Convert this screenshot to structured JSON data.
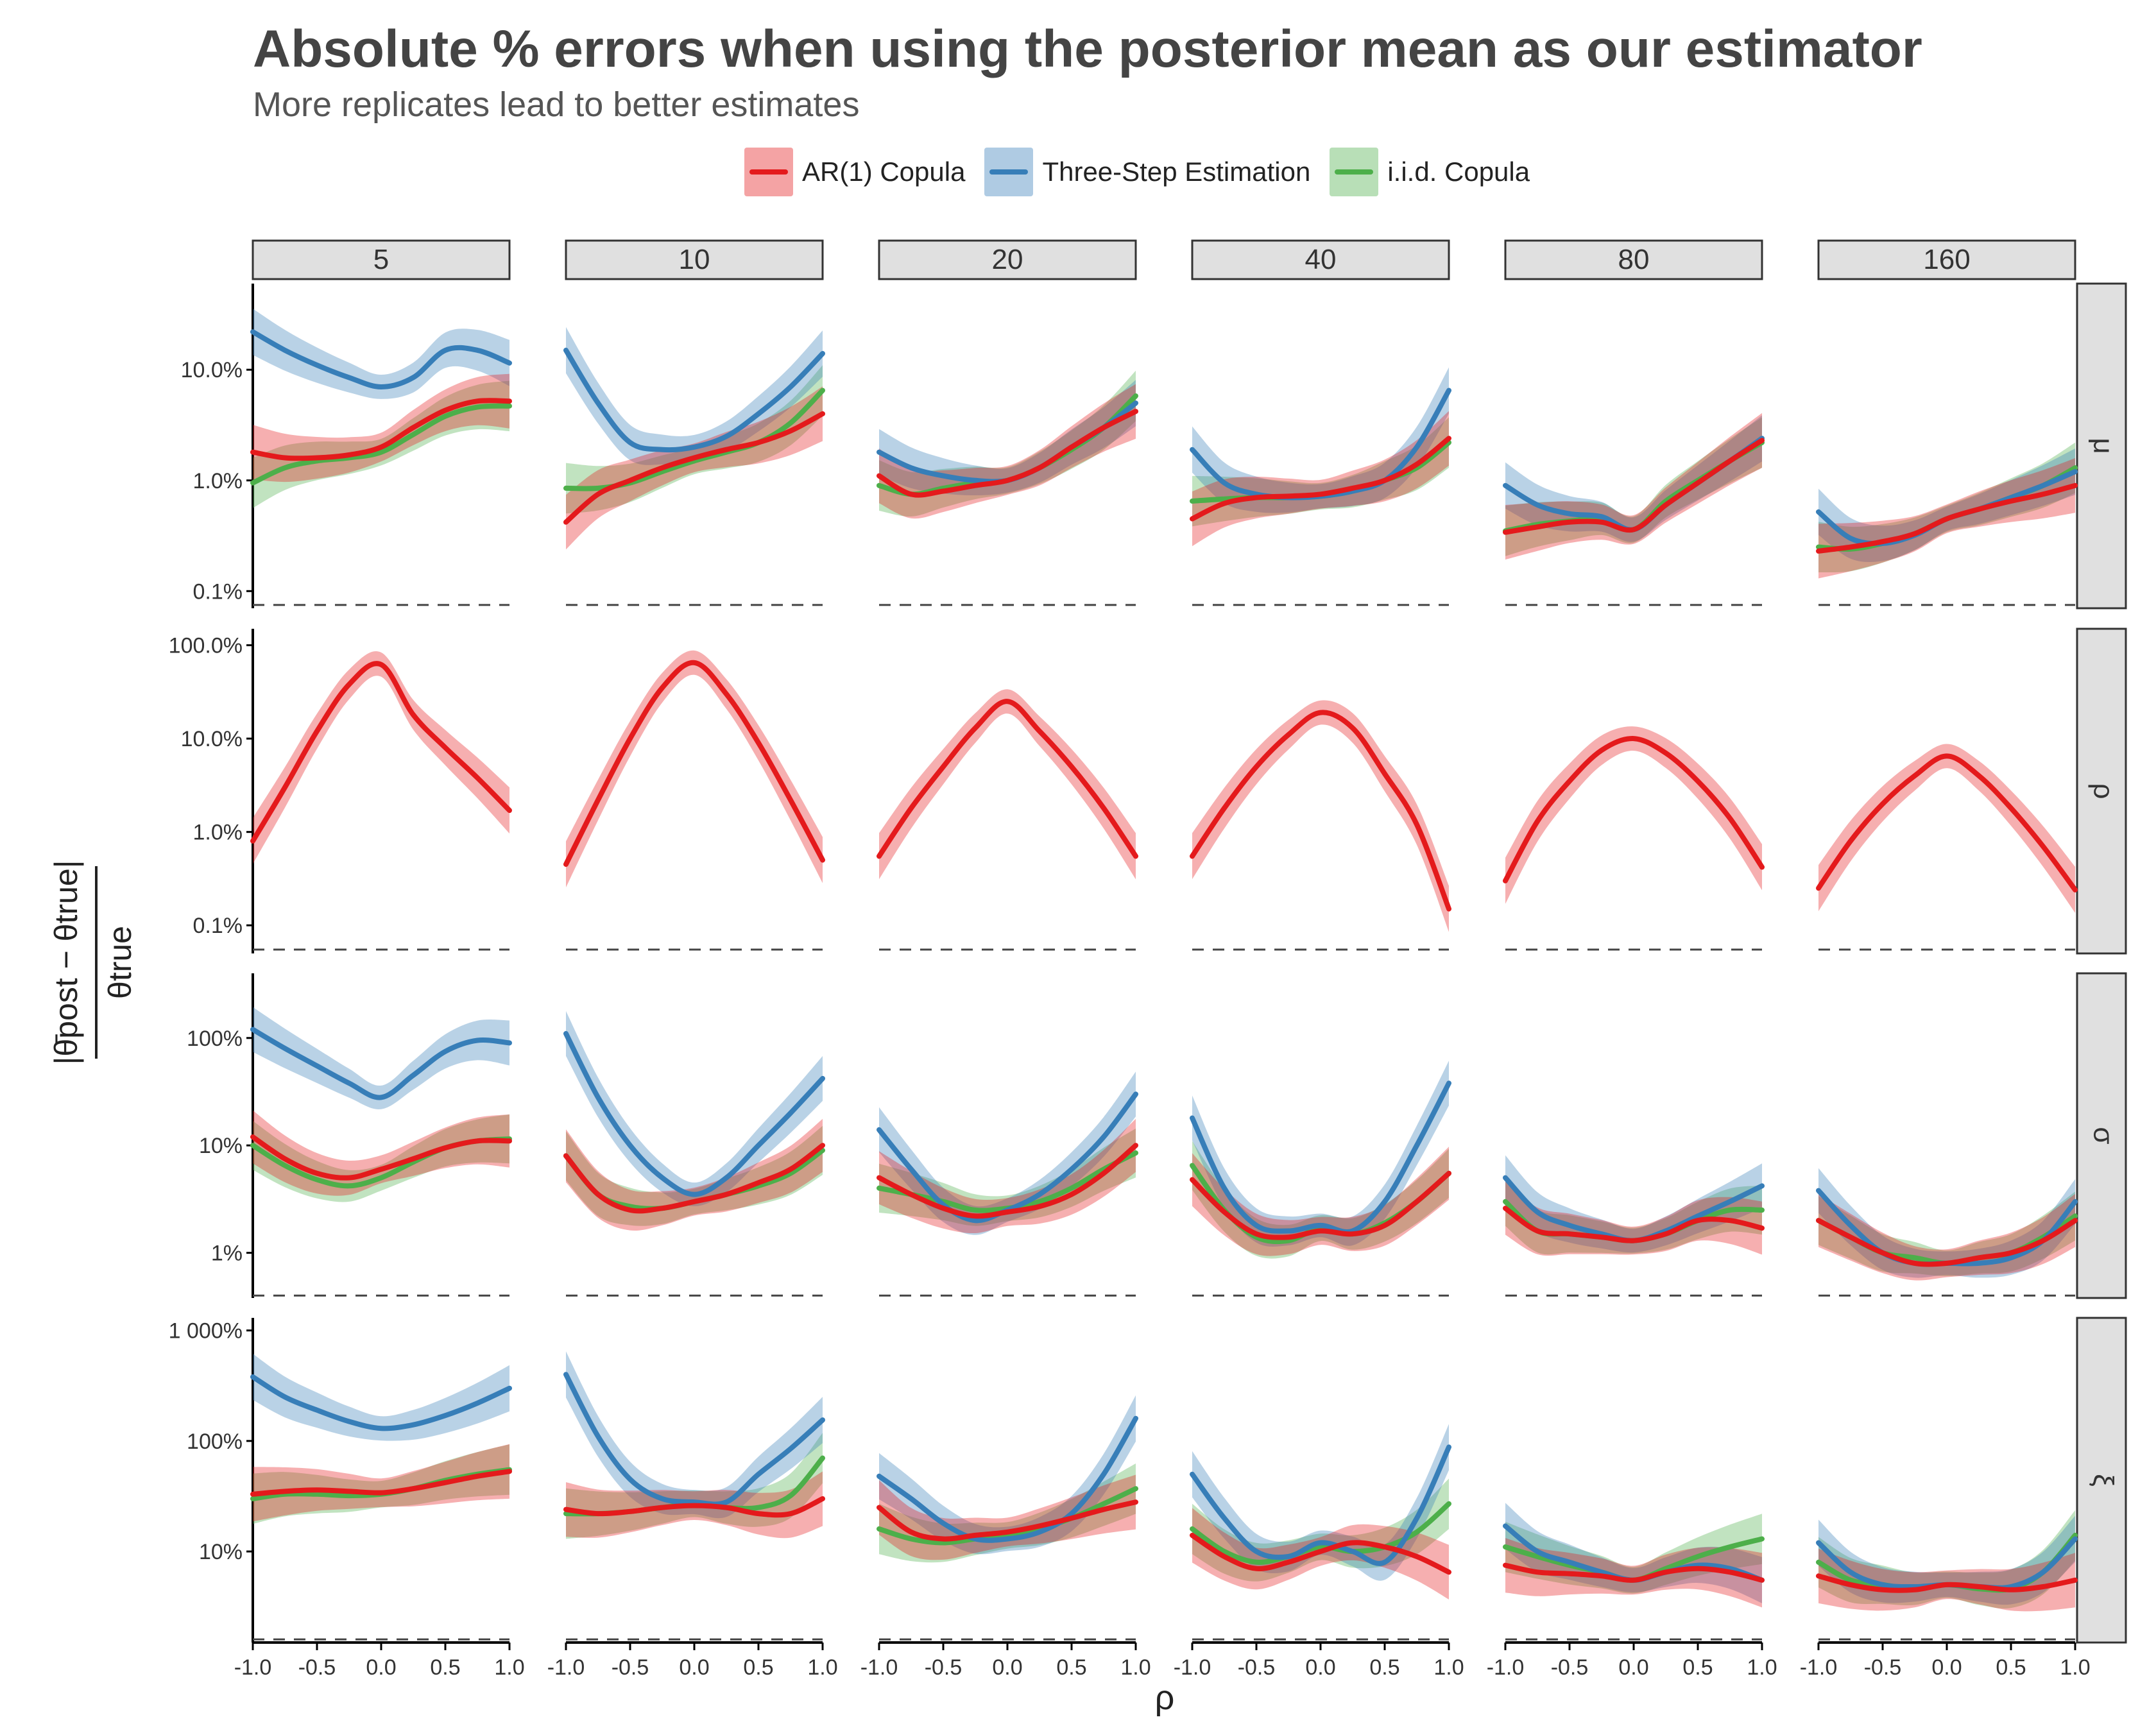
{
  "title": "Absolute % errors when using the posterior mean as our estimator",
  "subtitle": "More replicates lead to better estimates",
  "legend": [
    {
      "label": "AR(1) Copula",
      "color": "#e41a1c"
    },
    {
      "label": "Three-Step Estimation",
      "color": "#377eb8"
    },
    {
      "label": "i.i.d. Copula",
      "color": "#4daf4a"
    }
  ],
  "colors": {
    "strip_fill": "#e0e0e0",
    "strip_border": "#333333",
    "axis": "#000000",
    "reference_line": "#444444"
  },
  "chart_data": {
    "type": "line",
    "title": "Absolute % errors when using the posterior mean as our estimator",
    "subtitle": "More replicates lead to better estimates",
    "xlabel": "ρ",
    "ylabel_numerator": "|θ̄post − θtrue|",
    "ylabel_denominator": "θtrue",
    "y_scale": "log10",
    "x_range": [
      -1,
      1
    ],
    "x_ticks": [
      -1,
      -0.5,
      0,
      0.5,
      1
    ],
    "x_tick_labels": [
      "-1.0",
      "-0.5",
      "0.0",
      "0.5",
      "1.0"
    ],
    "x_points": [
      -1,
      -0.75,
      -0.5,
      -0.25,
      0,
      0.25,
      0.5,
      0.75,
      1
    ],
    "columns": [
      "5",
      "10",
      "20",
      "40",
      "80",
      "160"
    ],
    "rows": [
      {
        "label": "μ",
        "ylim": [
          0.07,
          60
        ],
        "ticks": [
          0.1,
          1,
          10
        ],
        "tick_labels": [
          "0.1%",
          "1.0%",
          "10.0%"
        ],
        "reference_value": 0.075,
        "panels": [
          {
            "ar1": [
              1.8,
              1.6,
              1.6,
              1.7,
              2.0,
              3.0,
              4.3,
              5.2,
              5.2
            ],
            "three": [
              22,
              15,
              11,
              8.5,
              7.0,
              8.5,
              15,
              15,
              11.5
            ],
            "iid": [
              0.95,
              1.3,
              1.5,
              1.6,
              1.8,
              2.6,
              3.8,
              4.6,
              4.7
            ]
          },
          {
            "ar1": [
              0.42,
              0.75,
              1.0,
              1.3,
              1.6,
              1.9,
              2.2,
              2.8,
              4.0
            ],
            "three": [
              15,
              5.0,
              2.2,
              1.9,
              2.0,
              2.5,
              4.0,
              7.0,
              14
            ],
            "iid": [
              0.85,
              0.85,
              0.95,
              1.2,
              1.5,
              1.8,
              2.2,
              3.3,
              6.5
            ]
          },
          {
            "ar1": [
              1.1,
              0.75,
              0.8,
              0.9,
              1.0,
              1.3,
              2.0,
              3.0,
              4.2
            ],
            "three": [
              1.8,
              1.3,
              1.1,
              1.0,
              1.0,
              1.3,
              2.0,
              3.0,
              5.0
            ],
            "iid": [
              0.9,
              0.75,
              0.85,
              0.95,
              1.0,
              1.3,
              1.9,
              3.0,
              5.8
            ]
          },
          {
            "ar1": [
              0.45,
              0.62,
              0.7,
              0.72,
              0.75,
              0.85,
              1.0,
              1.4,
              2.4
            ],
            "three": [
              1.9,
              0.95,
              0.75,
              0.7,
              0.72,
              0.8,
              1.0,
              2.0,
              6.5
            ],
            "iid": [
              0.65,
              0.68,
              0.7,
              0.7,
              0.72,
              0.8,
              1.0,
              1.3,
              2.2
            ]
          },
          {
            "ar1": [
              0.34,
              0.38,
              0.42,
              0.42,
              0.36,
              0.6,
              0.95,
              1.5,
              2.3
            ],
            "three": [
              0.9,
              0.6,
              0.5,
              0.47,
              0.36,
              0.6,
              0.95,
              1.5,
              2.4
            ],
            "iid": [
              0.35,
              0.4,
              0.43,
              0.45,
              0.36,
              0.65,
              1.0,
              1.5,
              2.2
            ]
          },
          {
            "ar1": [
              0.23,
              0.25,
              0.28,
              0.33,
              0.45,
              0.55,
              0.65,
              0.75,
              0.9
            ],
            "three": [
              0.52,
              0.3,
              0.27,
              0.32,
              0.45,
              0.55,
              0.7,
              0.9,
              1.2
            ],
            "iid": [
              0.25,
              0.24,
              0.27,
              0.33,
              0.45,
              0.55,
              0.7,
              0.9,
              1.3
            ]
          }
        ]
      },
      {
        "label": "ρ",
        "ylim": [
          0.05,
          150
        ],
        "ticks": [
          0.1,
          1,
          10,
          100
        ],
        "tick_labels": [
          "0.1%",
          "1.0%",
          "10.0%",
          "100.0%"
        ],
        "reference_value": 0.055,
        "panels": [
          {
            "ar1": [
              0.8,
              3.0,
              12,
              38,
              62,
              18,
              8,
              3.8,
              1.7
            ]
          },
          {
            "ar1": [
              0.45,
              2.2,
              10,
              35,
              65,
              30,
              9,
              2.2,
              0.5
            ]
          },
          {
            "ar1": [
              0.55,
              1.8,
              5.0,
              13,
              25,
              12,
              5.0,
              1.8,
              0.55
            ]
          },
          {
            "ar1": [
              0.55,
              1.8,
              5.0,
              11,
              19,
              13,
              4.2,
              1.2,
              0.15
            ]
          },
          {
            "ar1": [
              0.3,
              1.3,
              3.5,
              7.5,
              10,
              7.0,
              3.5,
              1.4,
              0.42
            ]
          },
          {
            "ar1": [
              0.25,
              0.8,
              2.0,
              4.0,
              6.5,
              4.0,
              1.8,
              0.7,
              0.24
            ]
          }
        ]
      },
      {
        "label": "σ",
        "ylim": [
          0.38,
          400
        ],
        "ticks": [
          1,
          10,
          100
        ],
        "tick_labels": [
          "1%",
          "10%",
          "100%"
        ],
        "reference_value": 0.4,
        "panels": [
          {
            "ar1": [
              12,
              7.5,
              5.5,
              5.0,
              6.0,
              7.5,
              9.5,
              11,
              11
            ],
            "three": [
              120,
              80,
              55,
              38,
              28,
              45,
              75,
              95,
              90
            ],
            "iid": [
              10,
              6.5,
              4.8,
              4.2,
              5.0,
              7.0,
              9.5,
              11,
              11.5
            ]
          },
          {
            "ar1": [
              8,
              3.5,
              2.5,
              2.6,
              3.0,
              3.5,
              4.5,
              6.0,
              10
            ],
            "three": [
              110,
              28,
              10,
              5.0,
              3.5,
              5.0,
              10,
              20,
              42
            ],
            "iid": [
              8,
              3.5,
              2.7,
              2.6,
              3.0,
              3.5,
              4.2,
              5.5,
              9
            ]
          },
          {
            "ar1": [
              5,
              3.5,
              2.6,
              2.2,
              2.4,
              2.7,
              3.5,
              5.5,
              10
            ],
            "three": [
              14,
              6.0,
              2.8,
              2.0,
              2.5,
              3.5,
              6.0,
              12,
              30
            ],
            "iid": [
              4,
              3.5,
              3.0,
              2.5,
              2.6,
              3.0,
              4.0,
              6.0,
              8.5
            ]
          },
          {
            "ar1": [
              4.8,
              2.4,
              1.5,
              1.4,
              1.6,
              1.5,
              1.8,
              3.0,
              5.5
            ],
            "three": [
              18,
              4.0,
              1.8,
              1.6,
              1.8,
              1.6,
              3.0,
              10,
              38
            ],
            "iid": [
              6.5,
              2.5,
              1.4,
              1.3,
              1.7,
              1.5,
              1.9,
              3.0,
              5.5
            ]
          },
          {
            "ar1": [
              2.6,
              1.6,
              1.5,
              1.4,
              1.3,
              1.5,
              2.0,
              2.0,
              1.7
            ],
            "three": [
              5.0,
              2.4,
              1.8,
              1.5,
              1.3,
              1.6,
              2.2,
              3.0,
              4.2
            ],
            "iid": [
              3.0,
              1.6,
              1.5,
              1.4,
              1.3,
              1.5,
              2.0,
              2.5,
              2.5
            ]
          },
          {
            "ar1": [
              2.0,
              1.4,
              1.0,
              0.8,
              0.8,
              0.9,
              1.0,
              1.3,
              2.0
            ],
            "three": [
              3.8,
              1.8,
              1.0,
              0.8,
              0.8,
              0.8,
              0.9,
              1.3,
              3.0
            ],
            "iid": [
              2.0,
              1.4,
              1.0,
              0.9,
              0.8,
              0.9,
              1.0,
              1.4,
              2.2
            ]
          }
        ]
      },
      {
        "label": "ξ",
        "ylim": [
          1.5,
          1300
        ],
        "ticks": [
          10,
          100,
          1000
        ],
        "tick_labels": [
          "10%",
          "100%",
          "1 000%"
        ],
        "reference_value": 1.6,
        "panels": [
          {
            "ar1": [
              33,
              35,
              36,
              35,
              34,
              37,
              42,
              48,
              53
            ],
            "three": [
              380,
              250,
              190,
              150,
              130,
              140,
              170,
              220,
              300
            ],
            "iid": [
              30,
              33,
              33,
              32,
              33,
              37,
              44,
              50,
              55
            ]
          },
          {
            "ar1": [
              24,
              22,
              23,
              25,
              26,
              25,
              22,
              22,
              30
            ],
            "three": [
              400,
              110,
              45,
              30,
              28,
              28,
              50,
              85,
              155
            ],
            "iid": [
              22,
              22,
              23,
              25,
              27,
              25,
              25,
              32,
              70
            ]
          },
          {
            "ar1": [
              25,
              15,
              13,
              14,
              15,
              17,
              20,
              24,
              28
            ],
            "three": [
              48,
              30,
              18,
              13,
              13,
              15,
              22,
              50,
              160
            ],
            "iid": [
              16,
              13,
              12,
              13,
              14,
              16,
              20,
              27,
              37
            ]
          },
          {
            "ar1": [
              14,
              9,
              7,
              8,
              10,
              12,
              11,
              9,
              6.5
            ],
            "three": [
              50,
              20,
              10,
              9,
              12,
              10,
              8,
              20,
              88
            ],
            "iid": [
              16,
              10,
              8,
              9,
              11,
              10,
              11,
              15,
              27
            ]
          },
          {
            "ar1": [
              7.5,
              6.5,
              6.3,
              6.0,
              5.5,
              6.5,
              7.0,
              6.5,
              5.5
            ],
            "three": [
              17,
              10,
              8,
              6.5,
              5.5,
              6.5,
              7.5,
              7,
              5.5
            ],
            "iid": [
              11,
              9,
              7.5,
              6.5,
              5.5,
              7,
              9,
              11,
              13
            ]
          },
          {
            "ar1": [
              6,
              5,
              4.5,
              4.5,
              5,
              4.8,
              4.5,
              4.8,
              5.5
            ],
            "three": [
              12,
              6.5,
              5,
              4.8,
              5,
              4.8,
              4.8,
              6.5,
              13
            ],
            "iid": [
              8,
              5.5,
              5,
              4.6,
              5,
              4.6,
              4.6,
              6.5,
              14
            ]
          }
        ]
      }
    ]
  }
}
